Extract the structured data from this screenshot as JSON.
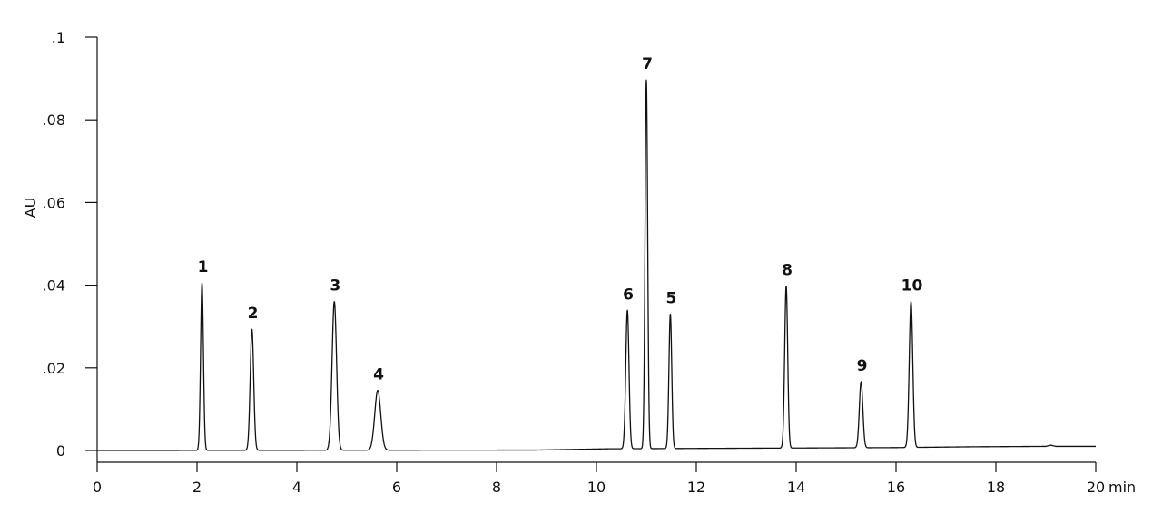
{
  "chart_data": {
    "type": "line",
    "title": "",
    "xlabel": "",
    "x_unit": "min",
    "ylabel": "AU",
    "xlim": [
      0,
      20
    ],
    "ylim": [
      -0.003,
      0.1
    ],
    "x_ticks": [
      "0",
      "2",
      "4",
      "6",
      "8",
      "10",
      "12",
      "14",
      "16",
      "18",
      "20"
    ],
    "x_tick_values": [
      0,
      2,
      4,
      6,
      8,
      10,
      12,
      14,
      16,
      18,
      20
    ],
    "y_ticks": [
      "0",
      ".02",
      ".04",
      ".06",
      ".08",
      ".1"
    ],
    "y_tick_values": [
      0,
      0.02,
      0.04,
      0.06,
      0.08,
      0.1
    ],
    "grid": false,
    "line_color": "#111111",
    "baseline": [
      {
        "t": 0,
        "v": 0.0
      },
      {
        "t": 8.8,
        "v": 0.0001
      },
      {
        "t": 10.2,
        "v": 0.0004
      },
      {
        "t": 12,
        "v": 0.0005
      },
      {
        "t": 16,
        "v": 0.0007
      },
      {
        "t": 17.5,
        "v": 0.0009
      },
      {
        "t": 19.0,
        "v": 0.001
      },
      {
        "t": 19.1,
        "v": 0.0013
      },
      {
        "t": 19.2,
        "v": 0.001
      },
      {
        "t": 20,
        "v": 0.001
      }
    ],
    "peaks": [
      {
        "label": "1",
        "rt": 2.1,
        "height": 0.0405,
        "width": 0.028
      },
      {
        "label": "2",
        "rt": 3.1,
        "height": 0.0293,
        "width": 0.035
      },
      {
        "label": "3",
        "rt": 4.75,
        "height": 0.036,
        "width": 0.045
      },
      {
        "label": "4",
        "rt": 5.62,
        "height": 0.0145,
        "width": 0.06
      },
      {
        "label": "6",
        "rt": 10.62,
        "height": 0.0335,
        "width": 0.032
      },
      {
        "label": "7",
        "rt": 11.0,
        "height": 0.0892,
        "width": 0.026
      },
      {
        "label": "5",
        "rt": 11.48,
        "height": 0.0325,
        "width": 0.028
      },
      {
        "label": "8",
        "rt": 13.8,
        "height": 0.0392,
        "width": 0.03
      },
      {
        "label": "9",
        "rt": 15.3,
        "height": 0.016,
        "width": 0.035
      },
      {
        "label": "10",
        "rt": 16.3,
        "height": 0.0353,
        "width": 0.035
      }
    ]
  }
}
